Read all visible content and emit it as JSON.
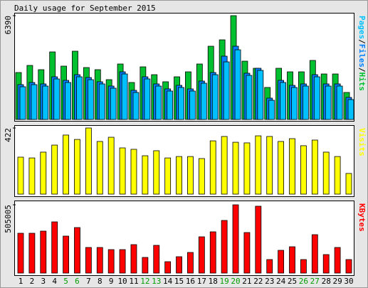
{
  "chart_data": [
    {
      "type": "bar",
      "title": "Daily usage for September 2015",
      "ylim": [
        0,
        6390
      ],
      "yticks": [
        6390
      ],
      "legend_separator": "/",
      "series": [
        {
          "name": "Hits",
          "color": "#00c030",
          "values": [
            2889,
            3326,
            3064,
            4158,
            3283,
            4202,
            3195,
            3064,
            2451,
            3414,
            2276,
            3239,
            2757,
            2320,
            2626,
            2932,
            3414,
            4508,
            4902,
            6390,
            3589,
            3151,
            1970,
            3151,
            2932,
            2932,
            3633,
            2801,
            2801,
            1663
          ]
        },
        {
          "name": "Files",
          "color": "#0080ff",
          "values": [
            2145,
            2276,
            2188,
            2626,
            2407,
            2757,
            2582,
            2320,
            2057,
            2932,
            1794,
            2626,
            2188,
            1882,
            2101,
            1882,
            2363,
            2889,
            3895,
            4508,
            2845,
            3151,
            1313,
            2407,
            2101,
            2188,
            2757,
            2188,
            2188,
            1357
          ]
        },
        {
          "name": "Pages",
          "color": "#00c0ff",
          "values": [
            2015,
            2145,
            2057,
            2495,
            2276,
            2626,
            2451,
            2188,
            1926,
            2801,
            1663,
            2495,
            2057,
            1751,
            1970,
            1751,
            2232,
            2757,
            3545,
            4289,
            2714,
            3020,
            1182,
            2276,
            1970,
            2057,
            2626,
            2057,
            2057,
            1226
          ]
        }
      ]
    },
    {
      "type": "bar",
      "ylim": [
        0,
        422
      ],
      "yticks": [
        422
      ],
      "series": [
        {
          "name": "Visits",
          "color": "#ffff00",
          "values": [
            236,
            231,
            268,
            313,
            377,
            349,
            422,
            336,
            363,
            295,
            286,
            245,
            277,
            231,
            240,
            240,
            227,
            340,
            368,
            331,
            327,
            372,
            368,
            336,
            354,
            309,
            345,
            268,
            240,
            132
          ]
        }
      ]
    },
    {
      "type": "bar",
      "ylim": [
        0,
        505005
      ],
      "yticks": [
        505005
      ],
      "categories": [
        "1",
        "2",
        "3",
        "4",
        "5",
        "6",
        "7",
        "8",
        "9",
        "10",
        "11",
        "12",
        "13",
        "14",
        "15",
        "16",
        "17",
        "18",
        "19",
        "20",
        "21",
        "22",
        "23",
        "24",
        "25",
        "26",
        "27",
        "28",
        "29",
        "30"
      ],
      "category_colors": [
        "#000000",
        "#000000",
        "#000000",
        "#000000",
        "#00a000",
        "#00a000",
        "#000000",
        "#000000",
        "#000000",
        "#000000",
        "#000000",
        "#00a000",
        "#00a000",
        "#000000",
        "#000000",
        "#000000",
        "#000000",
        "#000000",
        "#00a000",
        "#00a000",
        "#000000",
        "#000000",
        "#000000",
        "#000000",
        "#000000",
        "#00a000",
        "#00a000",
        "#000000",
        "#000000",
        "#000000"
      ],
      "series": [
        {
          "name": "KBytes",
          "color": "#ff0000",
          "values": [
            294588,
            294588,
            310370,
            378756,
            273546,
            336672,
            189378,
            189378,
            173597,
            173597,
            210420,
            115731,
            205160,
            84168,
            120992,
            152555,
            268286,
            305109,
            389277,
            505005,
            299849,
            494487,
            99950,
            168336,
            194639,
            99950,
            284067,
            136773,
            189378,
            99950
          ]
        }
      ]
    }
  ]
}
